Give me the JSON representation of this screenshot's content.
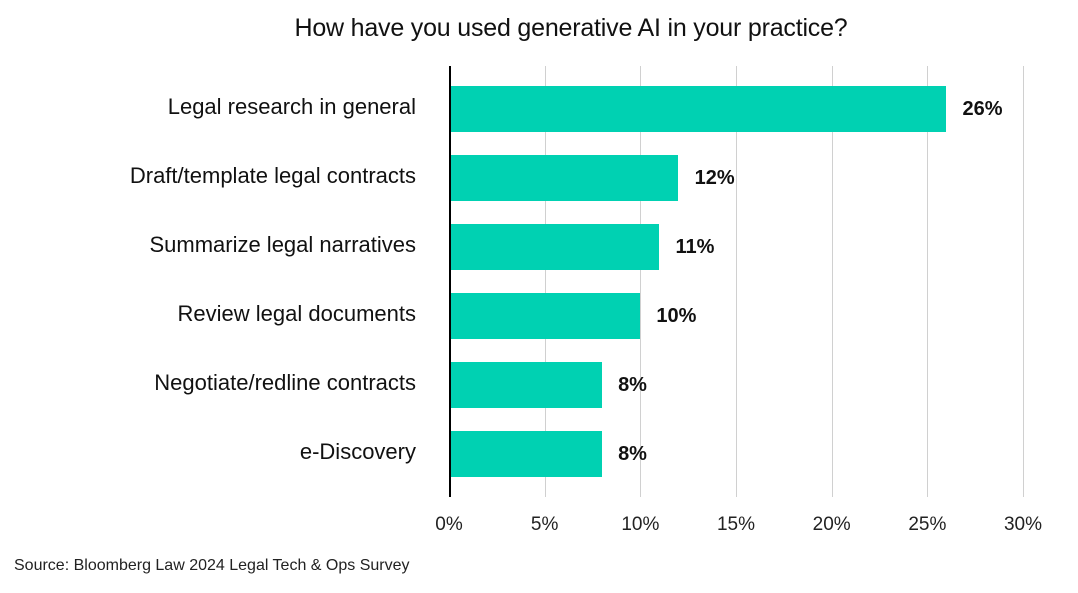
{
  "chart_data": {
    "type": "bar",
    "orientation": "horizontal",
    "title": "How have you used generative AI in your practice?",
    "categories": [
      "Legal research in general",
      "Draft/template legal contracts",
      "Summarize legal narratives",
      "Review legal documents",
      "Negotiate/redline contracts",
      "e-Discovery"
    ],
    "values": [
      26,
      12,
      11,
      10,
      8,
      8
    ],
    "value_labels": [
      "26%",
      "12%",
      "11%",
      "10%",
      "8%",
      "8%"
    ],
    "xlabel": "",
    "ylabel": "",
    "xlim": [
      0,
      30
    ],
    "x_ticks": [
      "0%",
      "5%",
      "10%",
      "15%",
      "20%",
      "25%",
      "30%"
    ],
    "grid": "vertical",
    "legend": "none",
    "bar_color": "#00D1B2",
    "source": "Source: Bloomberg Law 2024 Legal Tech & Ops Survey"
  }
}
